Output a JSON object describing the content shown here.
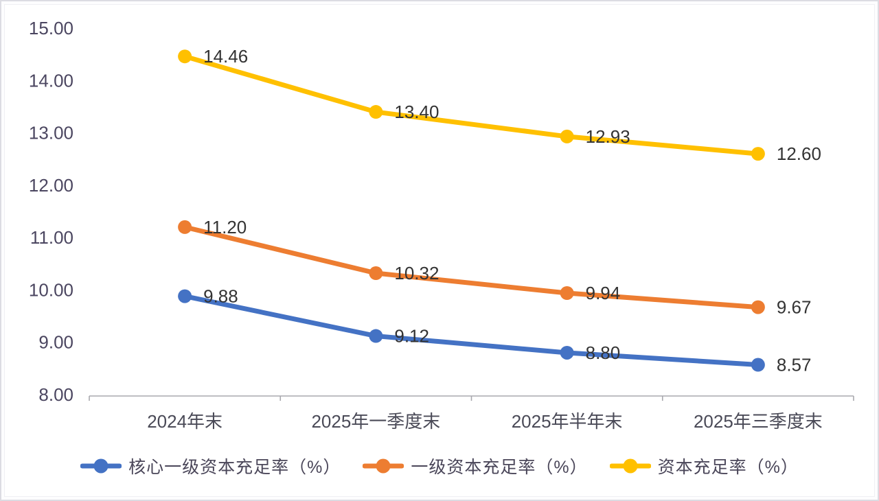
{
  "chart_data": {
    "type": "line",
    "categories": [
      "2024年末",
      "2025年一季度末",
      "2025年半年末",
      "2025年三季度末"
    ],
    "series": [
      {
        "name": "核心一级资本充足率（%）",
        "color": "#4472C4",
        "values": [
          9.88,
          9.12,
          8.8,
          8.57
        ]
      },
      {
        "name": "一级资本充足率（%）",
        "color": "#ED7D31",
        "values": [
          11.2,
          10.32,
          9.94,
          9.67
        ]
      },
      {
        "name": "资本充足率（%）",
        "color": "#FFC000",
        "values": [
          14.46,
          13.4,
          12.93,
          12.6
        ]
      }
    ],
    "ylim": [
      8,
      15
    ],
    "ytick_step": 1,
    "ytick_labels": [
      "15.00",
      "14.00",
      "13.00",
      "12.00",
      "11.00",
      "10.00",
      "9.00",
      "8.00"
    ],
    "grid": false,
    "legend_position": "bottom",
    "data_labels_visible": true,
    "data_label_decimals": 2,
    "colors": {
      "axis_line": "#a8a8ae",
      "axis_tick_label": "#4b4660",
      "category_label": "#4a4a57",
      "data_label": "#333333",
      "background": "#ffffff"
    }
  }
}
